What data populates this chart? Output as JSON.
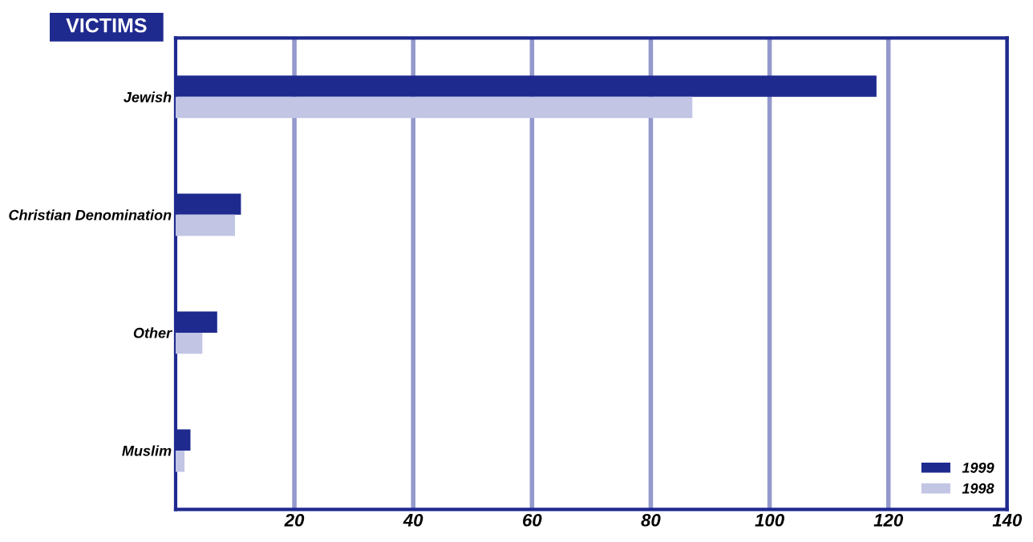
{
  "chart_data": {
    "type": "bar",
    "orientation": "horizontal",
    "title": "VICTIMS",
    "categories": [
      "Jewish",
      "Christian Denomination",
      "Other",
      "Muslim"
    ],
    "series": [
      {
        "name": "1999",
        "color": "#1f2a8f",
        "values": [
          118,
          11,
          7,
          2.5
        ]
      },
      {
        "name": "1998",
        "color": "#c2c5e4",
        "values": [
          87,
          10,
          4.5,
          1.5
        ]
      }
    ],
    "xlim": [
      0,
      140
    ],
    "xticks": [
      20,
      40,
      60,
      80,
      100,
      120,
      140
    ],
    "grid": "x",
    "legend": "bottom right"
  }
}
